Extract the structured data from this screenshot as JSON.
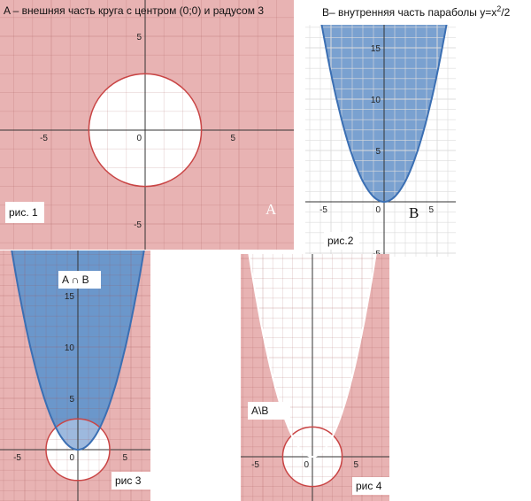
{
  "panels": [
    {
      "title": "A – внешняя часть круга с центром (0;0) и радусом 3",
      "caption": "рис. 1",
      "label": "A",
      "xticks": [
        -5,
        0,
        5
      ],
      "yticks": [
        5,
        -5
      ]
    },
    {
      "title_parts": [
        "B– внутренняя часть параболы y=x",
        "2",
        "/2"
      ],
      "caption": "рис.2",
      "label": "B",
      "xticks": [
        -5,
        0,
        5
      ],
      "yticks": [
        15,
        10,
        5,
        -5
      ]
    },
    {
      "caption": "рис 3",
      "label": "A ∩ B",
      "xticks": [
        -5,
        0,
        5
      ],
      "yticks": [
        15,
        10,
        5
      ]
    },
    {
      "caption": "рис  4",
      "label": "A\\B",
      "xticks": [
        -5,
        0,
        5
      ],
      "yticks": []
    }
  ]
}
